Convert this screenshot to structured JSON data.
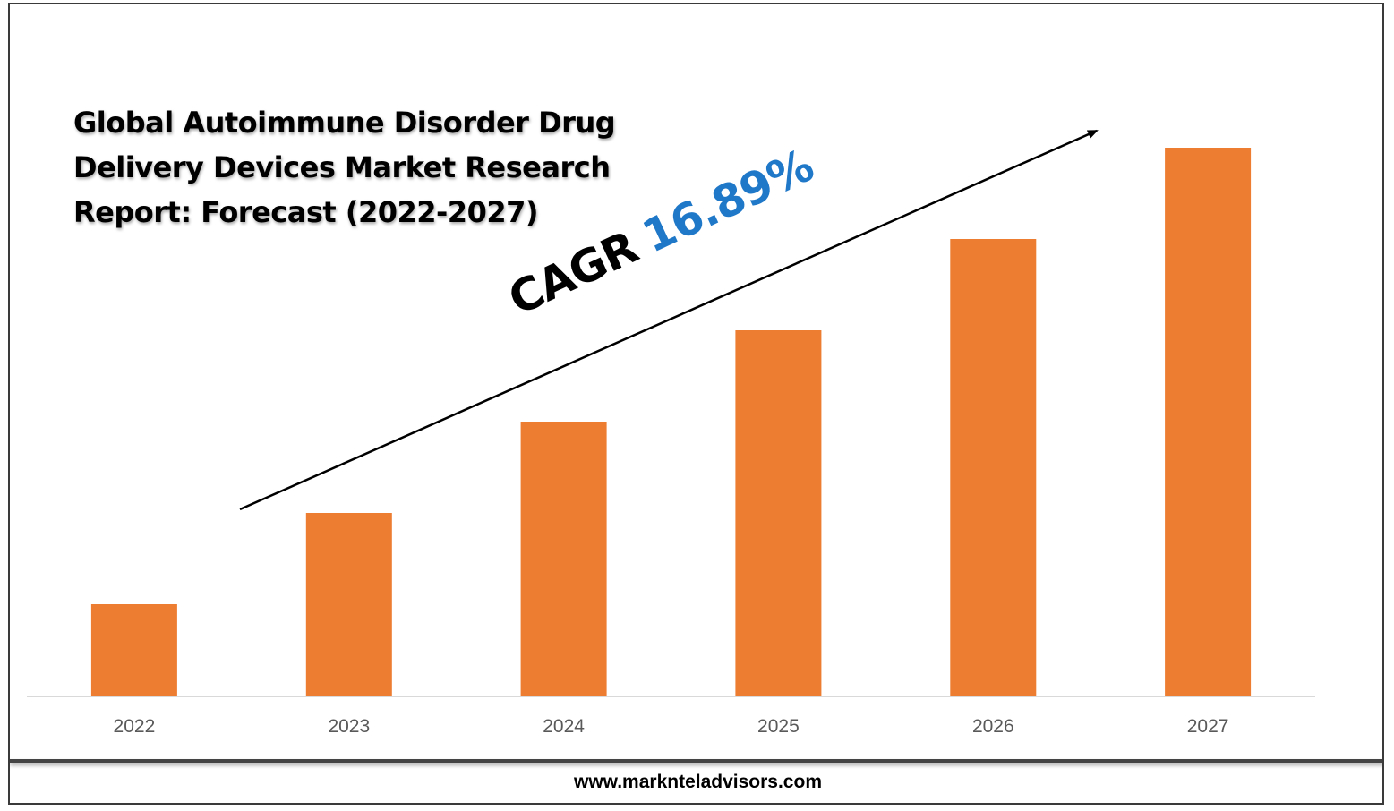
{
  "title": "Global Autoimmune Disorder Drug Delivery Devices Market Research Report: Forecast (2022-2027)",
  "cagr": {
    "label": "CAGR",
    "value": "16.89%"
  },
  "footer": {
    "url": "www.marknteladvisors.com"
  },
  "colors": {
    "bar": "#ed7d31",
    "cagr_value": "#1f78c8",
    "axis": "#d9d9d9",
    "tick_label": "#595959",
    "trend_arrow": "#000000"
  },
  "chart_data": {
    "type": "bar",
    "title": "Global Autoimmune Disorder Drug Delivery Devices Market Research Report: Forecast (2022-2027)",
    "categories": [
      "2022",
      "2023",
      "2024",
      "2025",
      "2026",
      "2027"
    ],
    "values": [
      1,
      2,
      3,
      4,
      5,
      6
    ],
    "ylim": [
      0,
      6
    ],
    "xlabel": "",
    "ylabel": "",
    "grid": false,
    "legend": "none",
    "annotations": [
      "CAGR 16.89%"
    ]
  }
}
